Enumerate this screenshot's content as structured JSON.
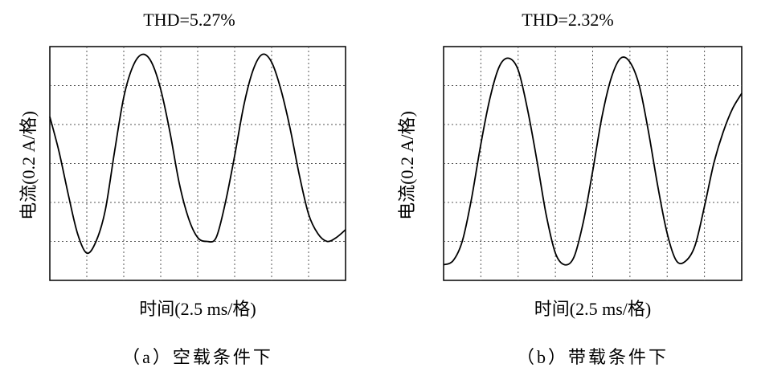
{
  "chart_data": [
    {
      "type": "line",
      "title": "THD=5.27%",
      "ylabel": "电流(0.2 A/格)",
      "xlabel": "时间(2.5 ms/格)",
      "caption": "（a）空载条件下",
      "grid": true,
      "x_divisions": 8,
      "y_divisions": 6,
      "xlim": [
        0,
        8
      ],
      "ylim": [
        -3,
        3
      ],
      "series": [
        {
          "x": [
            0,
            0.25,
            0.5,
            0.75,
            1.0,
            1.25,
            1.5,
            1.75,
            2.0,
            2.25,
            2.5,
            2.75,
            3.0,
            3.25,
            3.5,
            3.75,
            4.0,
            4.25,
            4.5,
            4.75,
            5.0,
            5.25,
            5.5,
            5.75,
            6.0,
            6.25,
            6.5,
            6.75,
            7.0,
            7.25,
            7.5,
            7.75,
            8.0
          ],
          "y": [
            1.2,
            0.3,
            -0.8,
            -1.8,
            -2.3,
            -2.0,
            -1.2,
            0.3,
            1.7,
            2.5,
            2.8,
            2.6,
            1.9,
            0.8,
            -0.5,
            -1.4,
            -1.9,
            -2.0,
            -1.9,
            -1.0,
            0.2,
            1.5,
            2.4,
            2.8,
            2.6,
            1.9,
            0.9,
            -0.3,
            -1.3,
            -1.8,
            -2.0,
            -1.9,
            -1.7
          ]
        }
      ]
    },
    {
      "type": "line",
      "title": "THD=2.32%",
      "ylabel": "电流(0.2 A/格)",
      "xlabel": "时间(2.5 ms/格)",
      "caption": "（b）带载条件下",
      "grid": true,
      "x_divisions": 8,
      "y_divisions": 6,
      "xlim": [
        0,
        8
      ],
      "ylim": [
        -3,
        3
      ],
      "series": [
        {
          "x": [
            0,
            0.25,
            0.5,
            0.75,
            1.0,
            1.25,
            1.5,
            1.75,
            2.0,
            2.25,
            2.5,
            2.75,
            3.0,
            3.25,
            3.5,
            3.75,
            4.0,
            4.25,
            4.5,
            4.75,
            5.0,
            5.25,
            5.5,
            5.75,
            6.0,
            6.25,
            6.5,
            6.75,
            7.0,
            7.25,
            7.5,
            7.75,
            8.0
          ],
          "y": [
            -2.6,
            -2.5,
            -2.0,
            -0.9,
            0.5,
            1.7,
            2.5,
            2.7,
            2.4,
            1.4,
            0.1,
            -1.3,
            -2.3,
            -2.6,
            -2.4,
            -1.5,
            -0.2,
            1.2,
            2.2,
            2.7,
            2.6,
            2.0,
            0.8,
            -0.6,
            -1.8,
            -2.5,
            -2.5,
            -2.1,
            -1.1,
            0.0,
            0.8,
            1.4,
            1.8
          ]
        }
      ]
    }
  ]
}
